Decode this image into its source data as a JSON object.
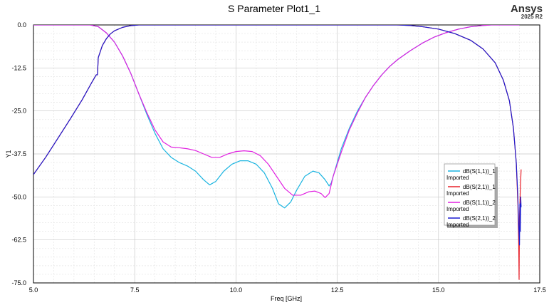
{
  "brand": {
    "name": "Ansys",
    "version": "2025 R2"
  },
  "chart_data": {
    "type": "line",
    "title": "S Parameter Plot1_1",
    "xlabel": "Freq [GHz]",
    "ylabel": "Y1",
    "xlim": [
      5.0,
      17.5
    ],
    "ylim": [
      -75.0,
      0.0
    ],
    "x_ticks": [
      5.0,
      7.5,
      10.0,
      12.5,
      15.0,
      17.5
    ],
    "y_ticks": [
      0.0,
      -12.5,
      -25.0,
      -37.5,
      -50.0,
      -62.5,
      -75.0
    ],
    "x_tick_labels": [
      "5.0",
      "7.5",
      "10.0",
      "12.5",
      "15.0",
      "17.5"
    ],
    "y_tick_labels": [
      "0.0",
      "-12.5",
      "-25.0",
      "-37.5",
      "-50.0",
      "-62.5",
      "-75.0"
    ],
    "grid": true,
    "legend_position": "right",
    "series": [
      {
        "name": "dB(S(1,1))_1",
        "sub": "Imported",
        "color": "#1ab4e0",
        "points": [
          [
            5.0,
            0
          ],
          [
            6.4,
            0
          ],
          [
            6.6,
            -0.5
          ],
          [
            6.8,
            -2.3
          ],
          [
            7.0,
            -5
          ],
          [
            7.2,
            -9
          ],
          [
            7.4,
            -14
          ],
          [
            7.6,
            -20
          ],
          [
            7.8,
            -26
          ],
          [
            8.0,
            -31.5
          ],
          [
            8.2,
            -36
          ],
          [
            8.4,
            -38.5
          ],
          [
            8.6,
            -40
          ],
          [
            8.8,
            -41
          ],
          [
            9.0,
            -42.5
          ],
          [
            9.2,
            -45
          ],
          [
            9.35,
            -46.5
          ],
          [
            9.5,
            -45.5
          ],
          [
            9.7,
            -42.5
          ],
          [
            9.9,
            -40.5
          ],
          [
            10.1,
            -39.5
          ],
          [
            10.3,
            -39.5
          ],
          [
            10.5,
            -40.5
          ],
          [
            10.7,
            -43
          ],
          [
            10.9,
            -47.5
          ],
          [
            11.05,
            -52
          ],
          [
            11.2,
            -53.2
          ],
          [
            11.35,
            -51.5
          ],
          [
            11.5,
            -48
          ],
          [
            11.7,
            -44
          ],
          [
            11.9,
            -42.5
          ],
          [
            12.05,
            -43
          ],
          [
            12.2,
            -45
          ],
          [
            12.3,
            -46.8
          ],
          [
            12.35,
            -46
          ],
          [
            12.45,
            -42
          ],
          [
            12.6,
            -36
          ],
          [
            12.8,
            -30
          ],
          [
            13.0,
            -25
          ],
          [
            13.2,
            -21
          ],
          [
            13.4,
            -17.5
          ],
          [
            13.6,
            -14.5
          ],
          [
            13.8,
            -12
          ],
          [
            14.0,
            -10
          ],
          [
            14.3,
            -7.5
          ],
          [
            14.6,
            -5.3
          ],
          [
            14.9,
            -3.5
          ],
          [
            15.2,
            -2.2
          ],
          [
            15.5,
            -1.2
          ],
          [
            15.8,
            -0.5
          ],
          [
            16.1,
            -0.15
          ],
          [
            16.3,
            0
          ],
          [
            17.0,
            0
          ]
        ]
      },
      {
        "name": "dB(S(2,1))_1",
        "sub": "Imported",
        "color": "#e8202a",
        "points": [
          [
            5.0,
            -43.5
          ],
          [
            5.3,
            -38.5
          ],
          [
            5.6,
            -33
          ],
          [
            5.9,
            -27.5
          ],
          [
            6.2,
            -21.8
          ],
          [
            6.45,
            -16.5
          ],
          [
            6.55,
            -14.5
          ],
          [
            6.58,
            -14.5
          ],
          [
            6.6,
            -9.5
          ],
          [
            6.7,
            -6
          ],
          [
            6.8,
            -4
          ],
          [
            6.9,
            -2.6
          ],
          [
            7.0,
            -1.7
          ],
          [
            7.2,
            -0.7
          ],
          [
            7.4,
            -0.2
          ],
          [
            7.6,
            0
          ],
          [
            14.0,
            0
          ],
          [
            14.3,
            -0.15
          ],
          [
            14.6,
            -0.5
          ],
          [
            15.0,
            -1.2
          ],
          [
            15.4,
            -2.5
          ],
          [
            15.8,
            -4.5
          ],
          [
            16.1,
            -7
          ],
          [
            16.4,
            -11
          ],
          [
            16.6,
            -16
          ],
          [
            16.75,
            -22
          ],
          [
            16.85,
            -30
          ],
          [
            16.92,
            -40
          ],
          [
            16.96,
            -52
          ],
          [
            16.98,
            -63
          ],
          [
            16.99,
            -74
          ],
          [
            17.0,
            -56
          ],
          [
            17.02,
            -48
          ],
          [
            17.04,
            -42
          ]
        ]
      },
      {
        "name": "dB(S(1,1))_2",
        "sub": "Imported",
        "color": "#e020e0",
        "points": [
          [
            5.0,
            0
          ],
          [
            6.4,
            0
          ],
          [
            6.6,
            -0.5
          ],
          [
            6.8,
            -2.3
          ],
          [
            7.0,
            -5
          ],
          [
            7.2,
            -9
          ],
          [
            7.4,
            -14
          ],
          [
            7.6,
            -20
          ],
          [
            7.8,
            -25.5
          ],
          [
            8.0,
            -30.5
          ],
          [
            8.2,
            -34
          ],
          [
            8.4,
            -35.5
          ],
          [
            8.6,
            -35.7
          ],
          [
            8.8,
            -36
          ],
          [
            9.0,
            -36.5
          ],
          [
            9.2,
            -37.5
          ],
          [
            9.4,
            -38.5
          ],
          [
            9.6,
            -38.5
          ],
          [
            9.8,
            -37.5
          ],
          [
            10.0,
            -36.8
          ],
          [
            10.2,
            -36.6
          ],
          [
            10.4,
            -36.8
          ],
          [
            10.6,
            -38
          ],
          [
            10.8,
            -40.5
          ],
          [
            11.0,
            -44
          ],
          [
            11.2,
            -47.5
          ],
          [
            11.4,
            -49.5
          ],
          [
            11.6,
            -49.5
          ],
          [
            11.8,
            -48.5
          ],
          [
            11.95,
            -48.3
          ],
          [
            12.1,
            -49
          ],
          [
            12.2,
            -50.2
          ],
          [
            12.3,
            -49
          ],
          [
            12.4,
            -44
          ],
          [
            12.6,
            -37
          ],
          [
            12.8,
            -30.5
          ],
          [
            13.0,
            -25.5
          ],
          [
            13.2,
            -21
          ],
          [
            13.4,
            -17.5
          ],
          [
            13.6,
            -14.5
          ],
          [
            13.8,
            -12
          ],
          [
            14.0,
            -10
          ],
          [
            14.3,
            -7.5
          ],
          [
            14.6,
            -5.3
          ],
          [
            14.9,
            -3.5
          ],
          [
            15.2,
            -2.2
          ],
          [
            15.5,
            -1.2
          ],
          [
            15.8,
            -0.5
          ],
          [
            16.1,
            -0.15
          ],
          [
            16.3,
            0
          ],
          [
            17.0,
            0
          ]
        ]
      },
      {
        "name": "dB(S(2,1))_2",
        "sub": "Imported",
        "color": "#1a1ad0",
        "points": [
          [
            5.0,
            -43.5
          ],
          [
            5.3,
            -38.5
          ],
          [
            5.6,
            -33
          ],
          [
            5.9,
            -27.5
          ],
          [
            6.2,
            -21.8
          ],
          [
            6.45,
            -16.5
          ],
          [
            6.55,
            -14.5
          ],
          [
            6.58,
            -14.5
          ],
          [
            6.6,
            -9.5
          ],
          [
            6.7,
            -6
          ],
          [
            6.8,
            -4
          ],
          [
            6.9,
            -2.6
          ],
          [
            7.0,
            -1.7
          ],
          [
            7.2,
            -0.7
          ],
          [
            7.4,
            -0.2
          ],
          [
            7.6,
            0
          ],
          [
            14.0,
            0
          ],
          [
            14.3,
            -0.15
          ],
          [
            14.6,
            -0.5
          ],
          [
            15.0,
            -1.2
          ],
          [
            15.4,
            -2.5
          ],
          [
            15.8,
            -4.5
          ],
          [
            16.1,
            -7
          ],
          [
            16.4,
            -11
          ],
          [
            16.6,
            -16
          ],
          [
            16.75,
            -22
          ],
          [
            16.85,
            -30
          ],
          [
            16.92,
            -40
          ],
          [
            16.96,
            -50
          ],
          [
            16.98,
            -58
          ],
          [
            17.0,
            -64
          ],
          [
            17.01,
            -52
          ],
          [
            17.02,
            -60
          ],
          [
            17.03,
            -50
          ],
          [
            17.04,
            -53
          ]
        ]
      }
    ]
  }
}
